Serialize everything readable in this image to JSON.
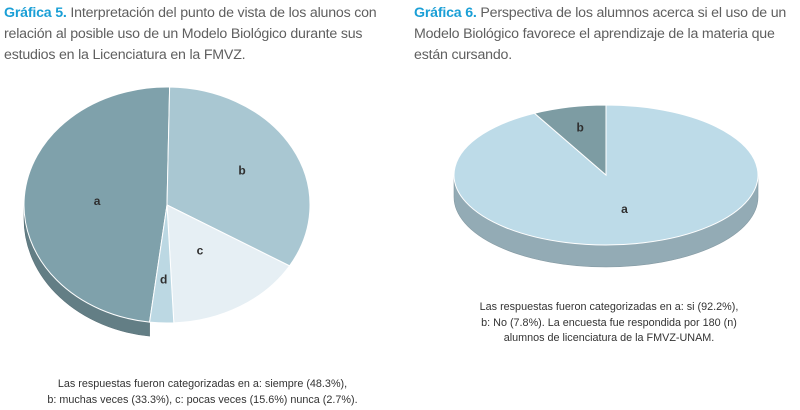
{
  "chart_data": [
    {
      "type": "pie",
      "title_label": "Gráfica 5.",
      "title": "Interpretación del punto de vista de los alunos con relación al posible uso de un Modelo Biológico durante sus estudios en la Licenciatura en la FMVZ.",
      "categories": [
        "a",
        "b",
        "c",
        "d"
      ],
      "values": [
        48.3,
        33.3,
        15.6,
        2.7
      ],
      "colors": [
        "#7fa1ab",
        "#a9c7d2",
        "#e6eff4",
        "#bcd8e3"
      ],
      "caption_lines": [
        "Las respuestas fueron categorizadas en a: siempre (48.3%),",
        "b: muchas veces (33.3%), c: pocas veces (15.6%) nunca (2.7%)."
      ]
    },
    {
      "type": "pie",
      "title_label": "Gráfica 6.",
      "title": "Perspectiva de los alumnos acerca si el uso de un Modelo Biológico favorece el aprendizaje de la materia que están cursando.",
      "categories": [
        "a",
        "b"
      ],
      "values": [
        92.2,
        7.8
      ],
      "colors": [
        "#bddbe8",
        "#7d9ca3"
      ],
      "caption_lines": [
        "Las respuestas fueron categorizadas en a: si (92.2%),",
        "b: No (7.8%). La encuesta fue respondida por 180 (n)",
        "alumnos de licenciatura de la FMVZ-UNAM."
      ]
    }
  ]
}
